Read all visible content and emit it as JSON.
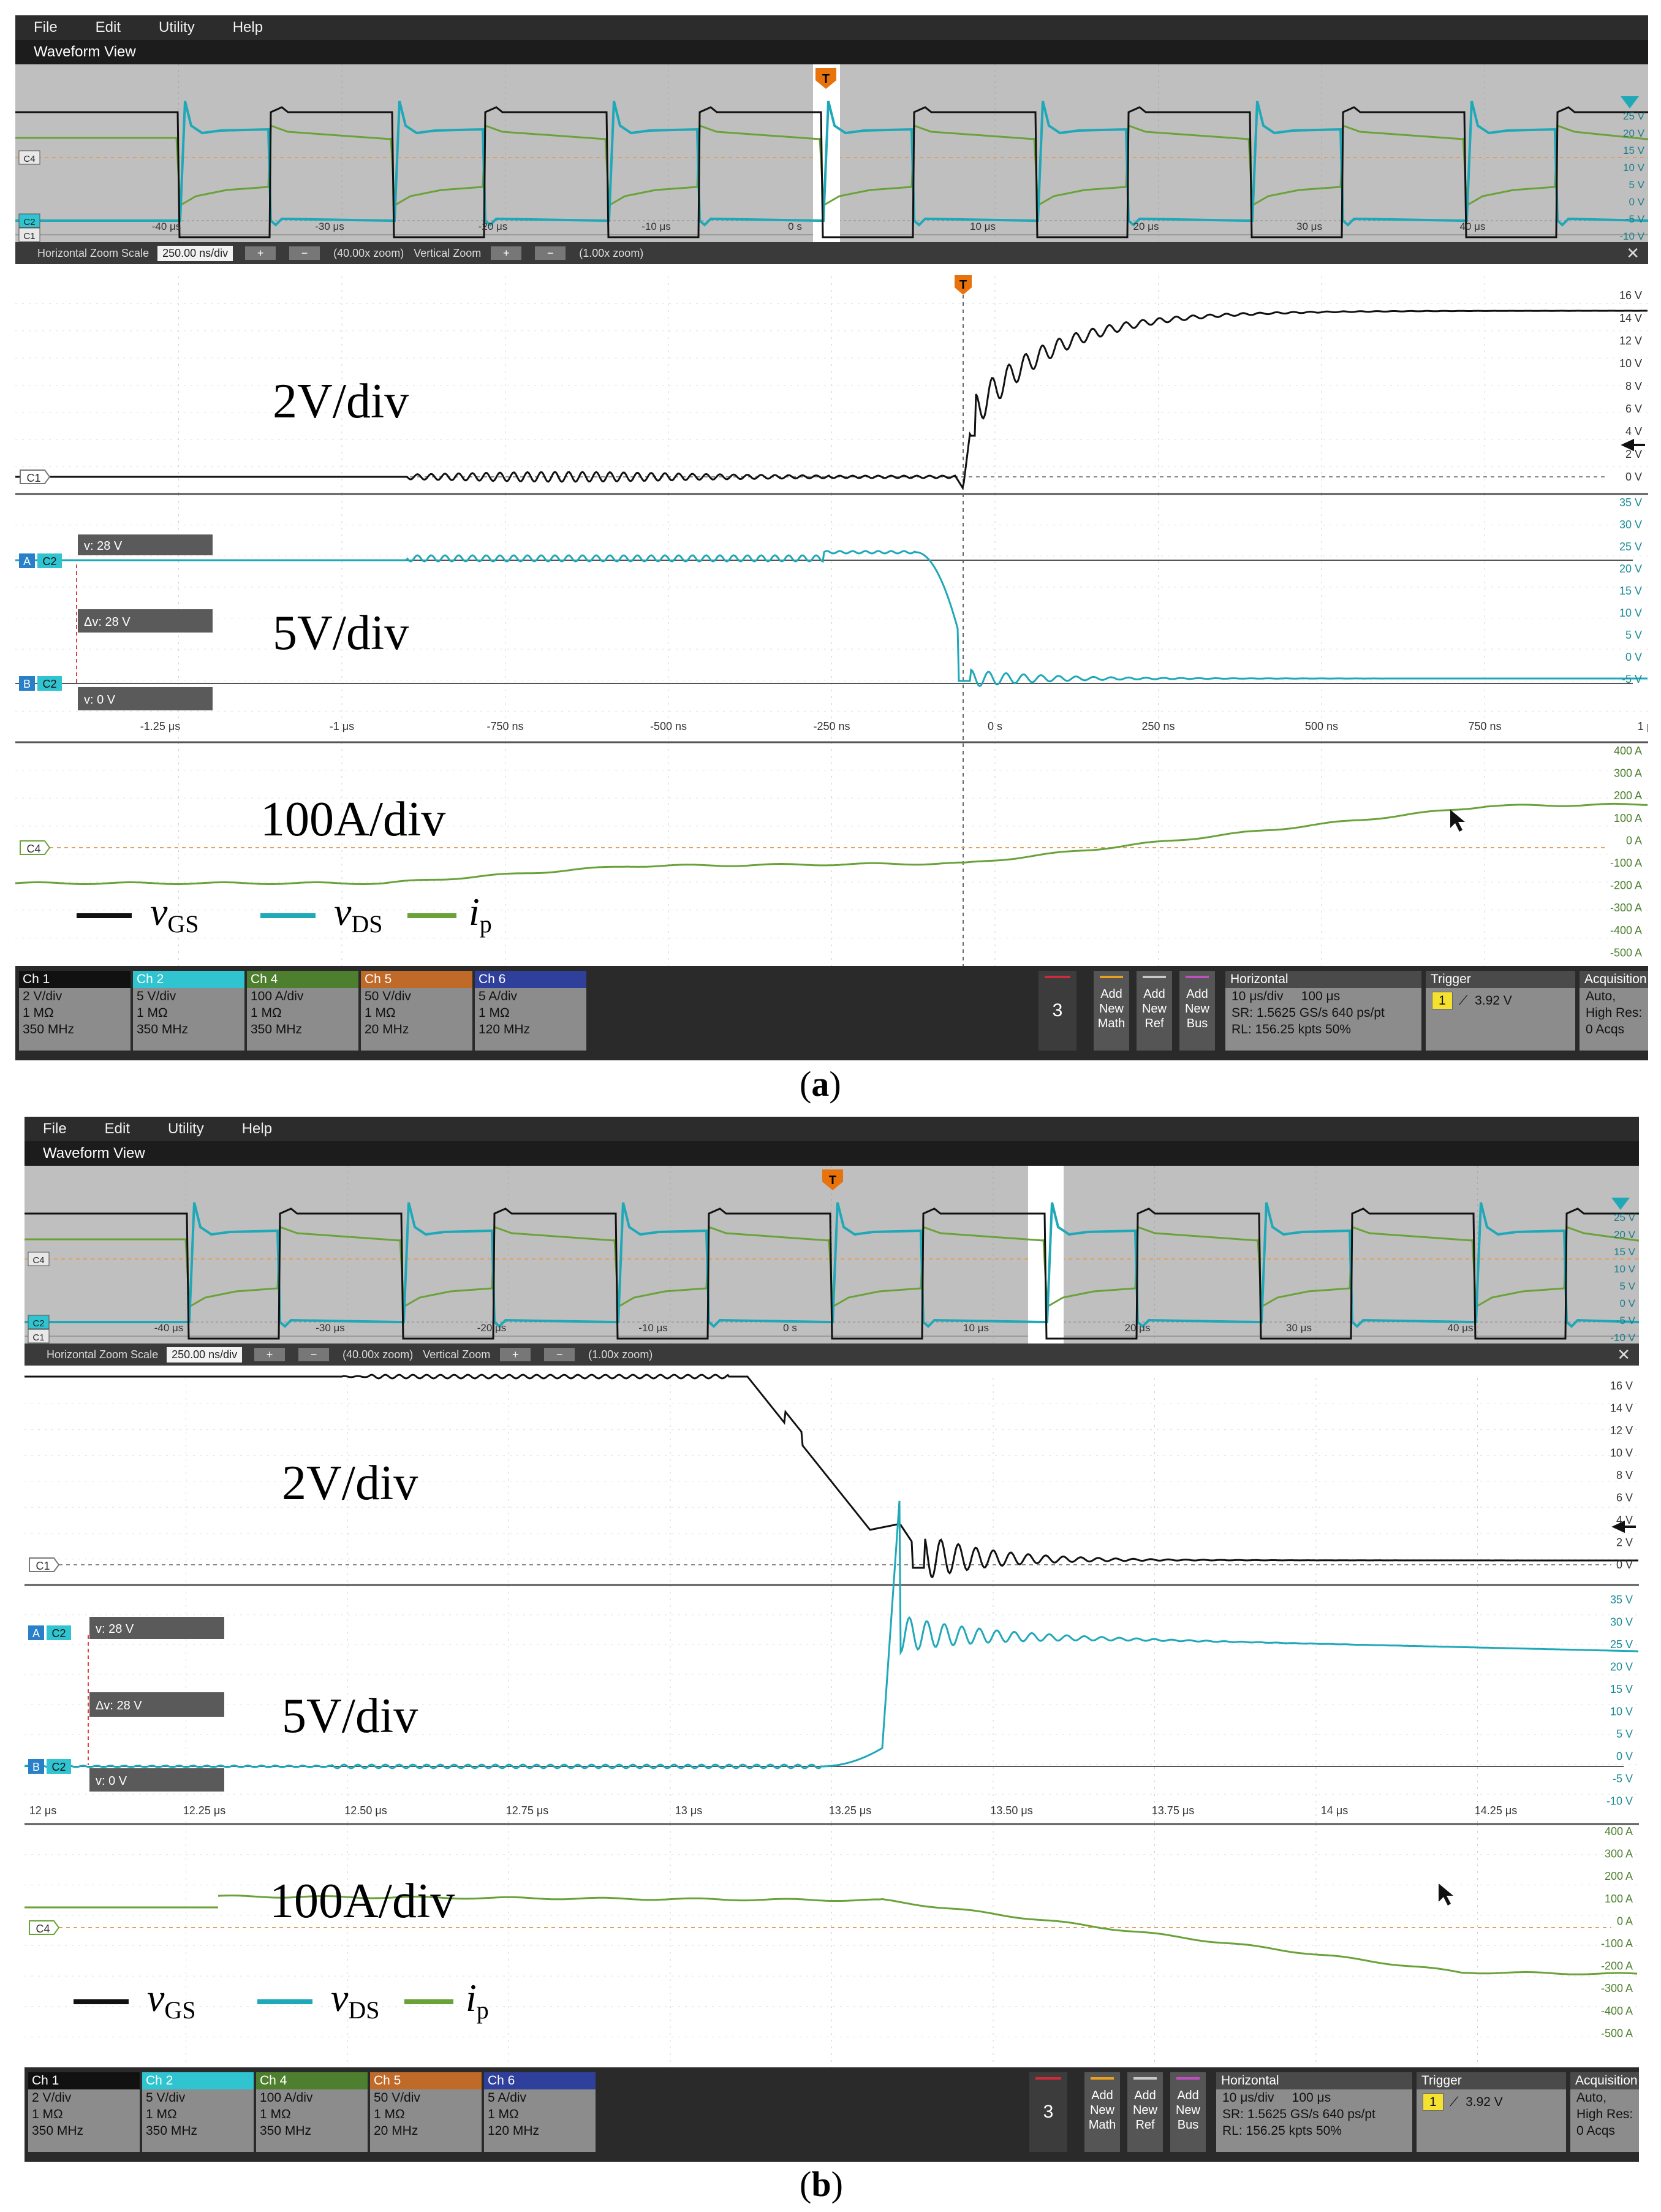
{
  "scopes": [
    {
      "menu": [
        "File",
        "Edit",
        "Utility",
        "Help"
      ],
      "view_title": "Waveform View",
      "overview": {
        "ch_labels": [
          "C4",
          "C2",
          "C1"
        ],
        "time_ticks": [
          "-40 μs",
          "-30 μs",
          "-20 μs",
          "-10 μs",
          "0 s",
          "10 μs",
          "20 μs",
          "30 μs",
          "40 μs"
        ],
        "volt_ticks": [
          "25 V",
          "20 V",
          "15 V",
          "10 V",
          "5 V",
          "0 V",
          "-5 V",
          "-10 V"
        ],
        "trigger_marker": "T"
      },
      "zoom": {
        "hz_label": "Horizontal Zoom Scale",
        "hz_value": "250.00 ns/div",
        "hz_factor": "(40.00x zoom)",
        "vz_label": "Vertical Zoom",
        "vz_factor": "(1.00x zoom)",
        "plus": "+",
        "minus": "−",
        "close": "✕"
      },
      "gs_pane": {
        "annotation": "2V/div",
        "ch_label": "C1",
        "trigger_marker": "T",
        "ticks": [
          "16 V",
          "14 V",
          "12 V",
          "10 V",
          "8 V",
          "6 V",
          "4 V",
          "2 V",
          "0 V"
        ]
      },
      "ds_pane": {
        "annotation": "5V/div",
        "cursor_a": "A",
        "cursor_b": "B",
        "ch_label": "C2",
        "cursor_a_readout": "v: 28 V",
        "delta_readout": "Δv: 28 V",
        "cursor_b_readout": "v: 0 V",
        "ticks": [
          "35 V",
          "30 V",
          "25 V",
          "20 V",
          "15 V",
          "10 V",
          "5 V",
          "0 V",
          "-5 V"
        ],
        "time_ticks": [
          "-1.25 μs",
          "-1 μs",
          "-750 ns",
          "-500 ns",
          "-250 ns",
          "0 s",
          "250 ns",
          "500 ns",
          "750 ns",
          "1 μs"
        ]
      },
      "ip_pane": {
        "annotation": "100A/div",
        "ch_label": "C4",
        "ticks": [
          "400 A",
          "300 A",
          "200 A",
          "100 A",
          "0 A",
          "-100 A",
          "-200 A",
          "-300 A",
          "-400 A",
          "-500 A"
        ]
      },
      "legend": {
        "vgs_main": "v",
        "vgs_sub": "GS",
        "vds_main": "v",
        "vds_sub": "DS",
        "ip_main": "i",
        "ip_sub": "p"
      },
      "channels": [
        {
          "name": "Ch 1",
          "l1": "2 V/div",
          "l2": "1 MΩ",
          "l3": "350 MHz",
          "color": "#111111"
        },
        {
          "name": "Ch 2",
          "l1": "5 V/div",
          "l2": "1 MΩ",
          "l3": "350 MHz",
          "color": "#2fc4d0"
        },
        {
          "name": "Ch 4",
          "l1": "100 A/div",
          "l2": "1 MΩ",
          "l3": "350 MHz",
          "color": "#4e7f2e"
        },
        {
          "name": "Ch 5",
          "l1": "50 V/div",
          "l2": "1 MΩ",
          "l3": "20 MHz",
          "color": "#c06a2a"
        },
        {
          "name": "Ch 6",
          "l1": "5 A/div",
          "l2": "1 MΩ",
          "l3": "120 MHz",
          "color": "#2f3f9c"
        }
      ],
      "count_badge": "3",
      "add_buttons": [
        {
          "l1": "Add",
          "l2": "New",
          "l3": "Math",
          "color": "#e8a020"
        },
        {
          "l1": "Add",
          "l2": "New",
          "l3": "Ref",
          "color": "#c8c8c8"
        },
        {
          "l1": "Add",
          "l2": "New",
          "l3": "Bus",
          "color": "#c050c0"
        }
      ],
      "horizontal": {
        "title": "Horizontal",
        "l1a": "10 μs/div",
        "l1b": "100 μs",
        "l2a": "SR: 1.5625 GS/s",
        "l2b": "640 ps/pt",
        "l3a": "RL: 156.25 kpts",
        "l3b": "50%"
      },
      "trigger": {
        "title": "Trigger",
        "source": "1",
        "level": "3.92 V"
      },
      "acquisition": {
        "title": "Acquisition",
        "l1": "Auto,",
        "l2": "High Res:",
        "l3": "0 Acqs"
      },
      "caption_open": "(",
      "caption_letter": "a",
      "caption_close": ")"
    },
    {
      "menu": [
        "File",
        "Edit",
        "Utility",
        "Help"
      ],
      "view_title": "Waveform View",
      "overview": {
        "ch_labels": [
          "C4",
          "C2",
          "C1"
        ],
        "time_ticks": [
          "-40 μs",
          "-30 μs",
          "-20 μs",
          "-10 μs",
          "0 s",
          "10 μs",
          "20 μs",
          "30 μs",
          "40 μs"
        ],
        "volt_ticks": [
          "25 V",
          "20 V",
          "15 V",
          "10 V",
          "5 V",
          "0 V",
          "-5 V",
          "-10 V"
        ],
        "trigger_marker": "T"
      },
      "zoom": {
        "hz_label": "Horizontal Zoom Scale",
        "hz_value": "250.00 ns/div",
        "hz_factor": "(40.00x zoom)",
        "vz_label": "Vertical Zoom",
        "vz_factor": "(1.00x zoom)",
        "plus": "+",
        "minus": "−",
        "close": "✕"
      },
      "gs_pane": {
        "annotation": "2V/div",
        "ch_label": "C1",
        "trigger_marker": "",
        "ticks": [
          "16 V",
          "14 V",
          "12 V",
          "10 V",
          "8 V",
          "6 V",
          "4 V",
          "2 V",
          "0 V"
        ]
      },
      "ds_pane": {
        "annotation": "5V/div",
        "cursor_a": "A",
        "cursor_b": "B",
        "ch_label": "C2",
        "cursor_a_readout": "v: 28 V",
        "delta_readout": "Δv: 28 V",
        "cursor_b_readout": "v: 0 V",
        "ticks": [
          "35 V",
          "30 V",
          "25 V",
          "20 V",
          "15 V",
          "10 V",
          "5 V",
          "0 V",
          "-5 V",
          "-10 V"
        ],
        "time_ticks": [
          "12 μs",
          "12.25 μs",
          "12.50 μs",
          "12.75 μs",
          "13 μs",
          "13.25 μs",
          "13.50 μs",
          "13.75 μs",
          "14 μs",
          "14.25 μs"
        ]
      },
      "ip_pane": {
        "annotation": "100A/div",
        "ch_label": "C4",
        "ticks": [
          "400 A",
          "300 A",
          "200 A",
          "100 A",
          "0 A",
          "-100 A",
          "-200 A",
          "-300 A",
          "-400 A",
          "-500 A"
        ]
      },
      "legend": {
        "vgs_main": "v",
        "vgs_sub": "GS",
        "vds_main": "v",
        "vds_sub": "DS",
        "ip_main": "i",
        "ip_sub": "p"
      },
      "channels": [
        {
          "name": "Ch 1",
          "l1": "2 V/div",
          "l2": "1 MΩ",
          "l3": "350 MHz",
          "color": "#111111"
        },
        {
          "name": "Ch 2",
          "l1": "5 V/div",
          "l2": "1 MΩ",
          "l3": "350 MHz",
          "color": "#2fc4d0"
        },
        {
          "name": "Ch 4",
          "l1": "100 A/div",
          "l2": "1 MΩ",
          "l3": "350 MHz",
          "color": "#4e7f2e"
        },
        {
          "name": "Ch 5",
          "l1": "50 V/div",
          "l2": "1 MΩ",
          "l3": "20 MHz",
          "color": "#c06a2a"
        },
        {
          "name": "Ch 6",
          "l1": "5 A/div",
          "l2": "1 MΩ",
          "l3": "120 MHz",
          "color": "#2f3f9c"
        }
      ],
      "count_badge": "3",
      "add_buttons": [
        {
          "l1": "Add",
          "l2": "New",
          "l3": "Math",
          "color": "#e8a020"
        },
        {
          "l1": "Add",
          "l2": "New",
          "l3": "Ref",
          "color": "#c8c8c8"
        },
        {
          "l1": "Add",
          "l2": "New",
          "l3": "Bus",
          "color": "#c050c0"
        }
      ],
      "horizontal": {
        "title": "Horizontal",
        "l1a": "10 μs/div",
        "l1b": "100 μs",
        "l2a": "SR: 1.5625 GS/s",
        "l2b": "640 ps/pt",
        "l3a": "RL: 156.25 kpts",
        "l3b": "50%"
      },
      "trigger": {
        "title": "Trigger",
        "source": "1",
        "level": "3.92 V"
      },
      "acquisition": {
        "title": "Acquisition",
        "l1": "Auto,",
        "l2": "High Res:",
        "l3": "0 Acqs"
      },
      "caption_open": "(",
      "caption_letter": "b",
      "caption_close": ")"
    }
  ],
  "colors": {
    "vgs": "#111111",
    "vds": "#1fa8b8",
    "ip": "#6aa23a",
    "ref_orange": "#e0a060"
  }
}
